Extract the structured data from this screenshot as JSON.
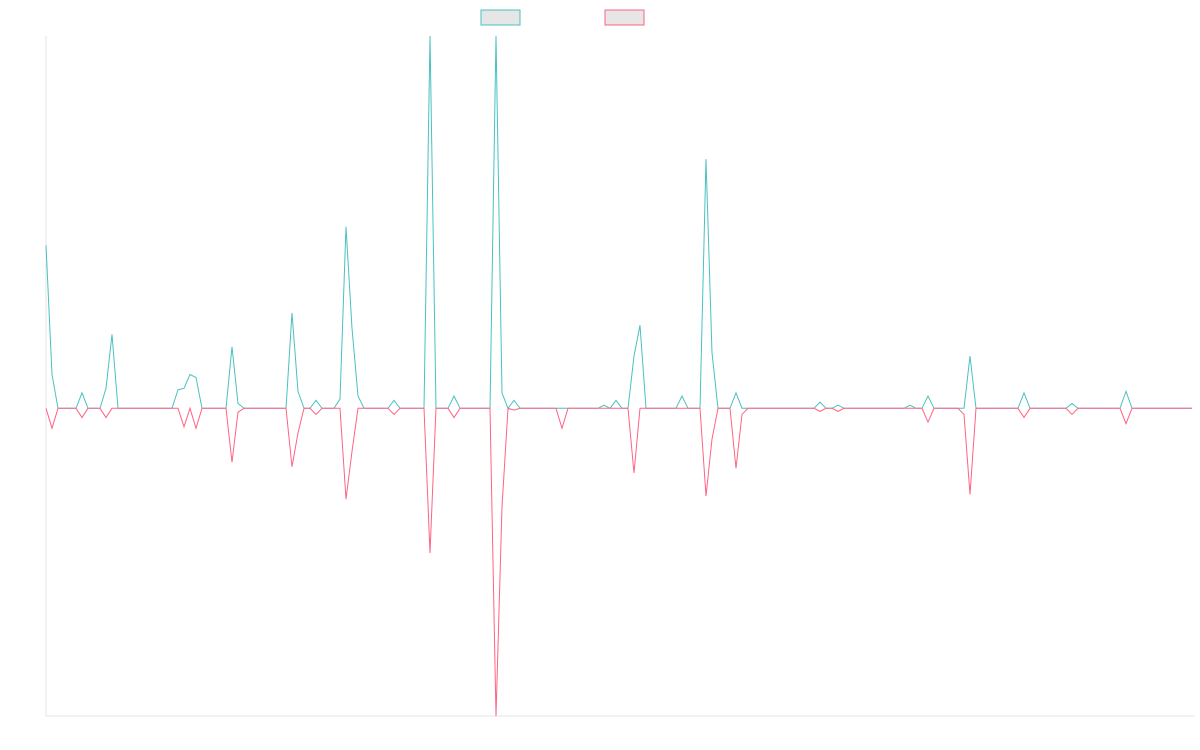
{
  "chart_data": {
    "type": "line",
    "ylim": [
      -100,
      121
    ],
    "series": [
      {
        "color": "#4bc0c0",
        "values": [
          53,
          11,
          0,
          0,
          0,
          0,
          5,
          0,
          0,
          0,
          6.5,
          24,
          0,
          0,
          0,
          0,
          0,
          0,
          0,
          0,
          0,
          0,
          6,
          6.5,
          11,
          10,
          0,
          0,
          0,
          0,
          0,
          20,
          1.6,
          0,
          0,
          0,
          0,
          0,
          0,
          0,
          0,
          31,
          5.5,
          0,
          0,
          2.6,
          0,
          0,
          0,
          3,
          59,
          26,
          4,
          0,
          0,
          0,
          0,
          0,
          2.6,
          0,
          0,
          0,
          0,
          0,
          121,
          0,
          0,
          0,
          4,
          0,
          0,
          0,
          0,
          0,
          0,
          121,
          5,
          0,
          2.6,
          0,
          0,
          0,
          0,
          0,
          0,
          0,
          0,
          0,
          0,
          0,
          0,
          0,
          0,
          1,
          0,
          2.6,
          0,
          0,
          17,
          27,
          0,
          0,
          0,
          0,
          0,
          0,
          4,
          0,
          0,
          0,
          81,
          18,
          0,
          0,
          0,
          5,
          0,
          0,
          0,
          0,
          0,
          0,
          0,
          0,
          0,
          0,
          0,
          0,
          0,
          2,
          0,
          0,
          1,
          0,
          0,
          0,
          0,
          0,
          0,
          0,
          0,
          0,
          0,
          0,
          1,
          0,
          0,
          4,
          0,
          0,
          0,
          0,
          0,
          0,
          17,
          0,
          0,
          0,
          0,
          0,
          0,
          0,
          0,
          5,
          0,
          0,
          0,
          0,
          0,
          0,
          0,
          1.6,
          0,
          0,
          0,
          0,
          0,
          0,
          0,
          0,
          5.5,
          0,
          0,
          0,
          0,
          0,
          0,
          0,
          0,
          0,
          0,
          0
        ]
      },
      {
        "color": "#ff6384",
        "values": [
          0,
          -6.5,
          0,
          0,
          0,
          0,
          -3,
          0,
          0,
          0,
          -3,
          0,
          0,
          0,
          0,
          0,
          0,
          0,
          0,
          0,
          0,
          0,
          0,
          -6,
          0,
          -6.5,
          0,
          0,
          0,
          0,
          0,
          -17.5,
          -1.3,
          0,
          0,
          0,
          0,
          0,
          0,
          0,
          0,
          -19,
          -8,
          0,
          0,
          -2,
          0,
          0,
          0,
          0,
          -29.5,
          -14,
          0,
          0,
          0,
          0,
          0,
          0,
          -2,
          0,
          0,
          0,
          0,
          0,
          -47,
          0,
          0,
          0,
          -3,
          0,
          0,
          0,
          0,
          0,
          0,
          -100,
          -32,
          0,
          -0.6,
          0,
          0,
          0,
          0,
          0,
          0,
          0,
          -6.5,
          0,
          0,
          0,
          0,
          0,
          0,
          0,
          0,
          0,
          0,
          0,
          -21,
          0,
          0,
          0,
          0,
          0,
          0,
          0,
          0,
          0,
          0,
          0,
          -28.5,
          -10,
          0,
          0,
          0,
          -19.5,
          -2,
          0,
          0,
          0,
          0,
          0,
          0,
          0,
          0,
          0,
          0,
          0,
          0,
          -1,
          0,
          0,
          -1,
          0,
          0,
          0,
          0,
          0,
          0,
          0,
          0,
          0,
          0,
          0,
          0,
          0,
          0,
          -4.5,
          0,
          0,
          0,
          0,
          0,
          -2,
          -28,
          0,
          0,
          0,
          0,
          0,
          0,
          0,
          0,
          -3,
          0,
          0,
          0,
          0,
          0,
          0,
          0,
          -2,
          0,
          0,
          0,
          0,
          0,
          0,
          0,
          0,
          -5,
          0,
          0,
          0,
          0,
          0,
          0,
          0,
          0,
          0,
          0,
          0
        ]
      }
    ]
  }
}
